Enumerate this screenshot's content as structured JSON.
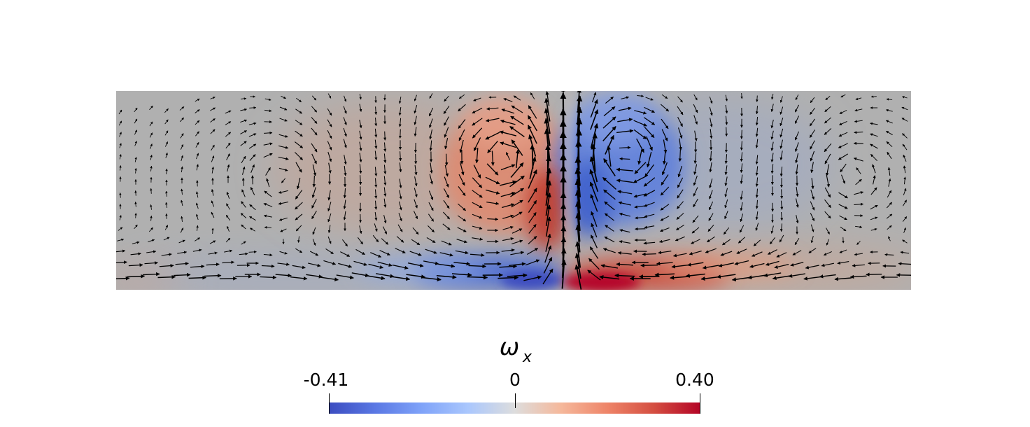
{
  "chart_data": {
    "type": "heatmap",
    "field": "vorticity component ω_x with velocity vector glyphs",
    "title": "ωx",
    "title_main": "ω",
    "title_sub": "x",
    "colormap": "cool-to-warm (blue-white-red)",
    "colorbar": {
      "min": -0.41,
      "mid": 0,
      "max": 0.4,
      "tick_labels": [
        "-0.41",
        "0",
        "0.40"
      ],
      "colors": {
        "low": "#3b4cc0",
        "mid": "#dddddd",
        "high": "#b40426"
      }
    },
    "domain_background": "#b0b0b0",
    "features": [
      {
        "name": "upper-left vortex",
        "sign": "positive",
        "peak": 0.32
      },
      {
        "name": "upper-right vortex",
        "sign": "negative",
        "peak": -0.33
      },
      {
        "name": "lower-left boundary layer",
        "sign": "negative",
        "peak": -0.41
      },
      {
        "name": "lower-right boundary layer",
        "sign": "positive",
        "peak": 0.4
      }
    ]
  }
}
